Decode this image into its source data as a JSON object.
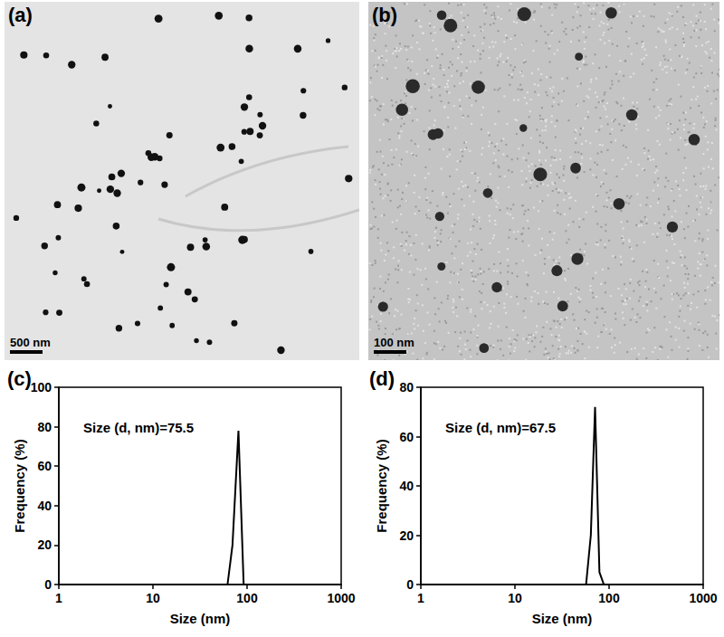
{
  "images": [
    {
      "label": "(a)",
      "scale_bar": "500 nm"
    },
    {
      "label": "(b)",
      "scale_bar": "100 nm"
    }
  ],
  "chart_data": [
    {
      "type": "line",
      "title": "(c)",
      "annotation": "Size (d, nm)=75.5",
      "xlabel": "Size (nm)",
      "ylabel": "Frequency (%)",
      "x": [
        1,
        62,
        70,
        81,
        92,
        1000
      ],
      "values": [
        0,
        0,
        20,
        78,
        0,
        0
      ],
      "color": "#000000",
      "log": "x",
      "xlim": [
        1,
        1000
      ],
      "xticks": [
        1,
        10,
        100,
        1000
      ],
      "ylim": [
        0,
        100
      ],
      "yticks": [
        0,
        20,
        40,
        60,
        80,
        100
      ],
      "grid": false
    },
    {
      "type": "line",
      "title": "(d)",
      "annotation": "Size (d, nm)=67.5",
      "xlabel": "Size (nm)",
      "ylabel": "Frequency (%)",
      "x": [
        1,
        57,
        64,
        71,
        79,
        88,
        1000
      ],
      "values": [
        0,
        0,
        20,
        72,
        5,
        0,
        0
      ],
      "color": "#000000",
      "log": "x",
      "xlim": [
        1,
        1000
      ],
      "xticks": [
        1,
        10,
        100,
        1000
      ],
      "ylim": [
        0,
        80
      ],
      "yticks": [
        0,
        20,
        40,
        60,
        80
      ],
      "grid": false
    }
  ]
}
